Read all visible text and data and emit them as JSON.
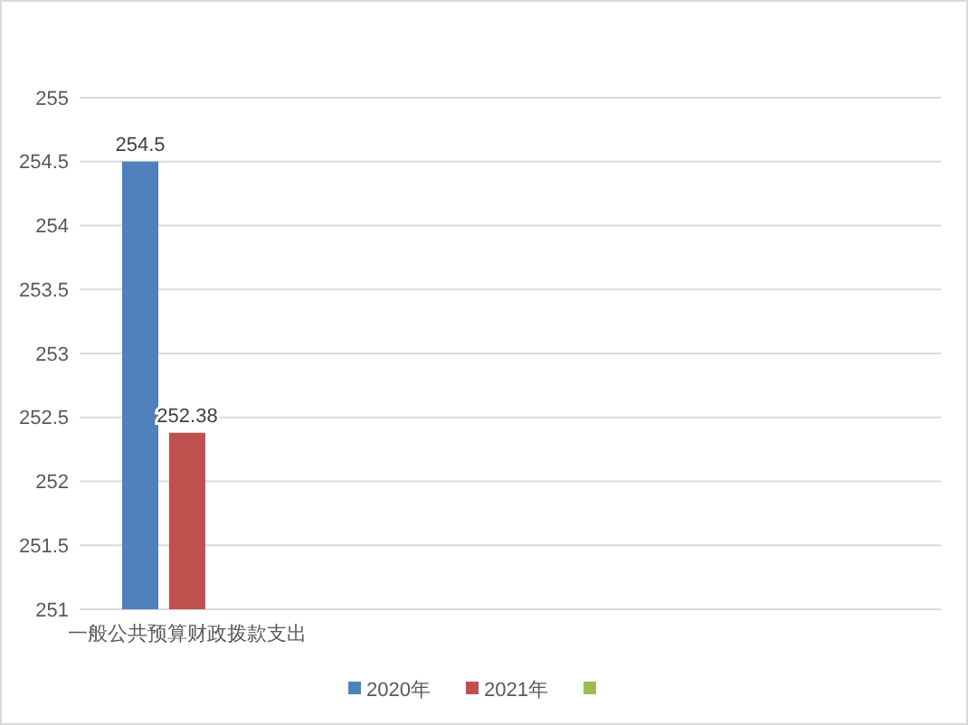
{
  "chart_data": {
    "type": "bar",
    "categories": [
      "一般公共预算财政拨款支出",
      null,
      null,
      null
    ],
    "series": [
      {
        "name": "2020年",
        "color": "#4f81bd",
        "values": [
          254.5,
          null,
          null,
          null
        ]
      },
      {
        "name": "2021年",
        "color": "#c0504d",
        "values": [
          252.38,
          null,
          null,
          null
        ]
      },
      {
        "color": "#9bbb59",
        "values": [
          null,
          null,
          null,
          null
        ]
      }
    ],
    "ylim": [
      251,
      255
    ],
    "yticks": [
      251,
      251.5,
      252,
      252.5,
      253,
      253.5,
      254,
      254.5,
      255
    ],
    "grid": "y",
    "data_labels": true,
    "legend": "bottom"
  }
}
